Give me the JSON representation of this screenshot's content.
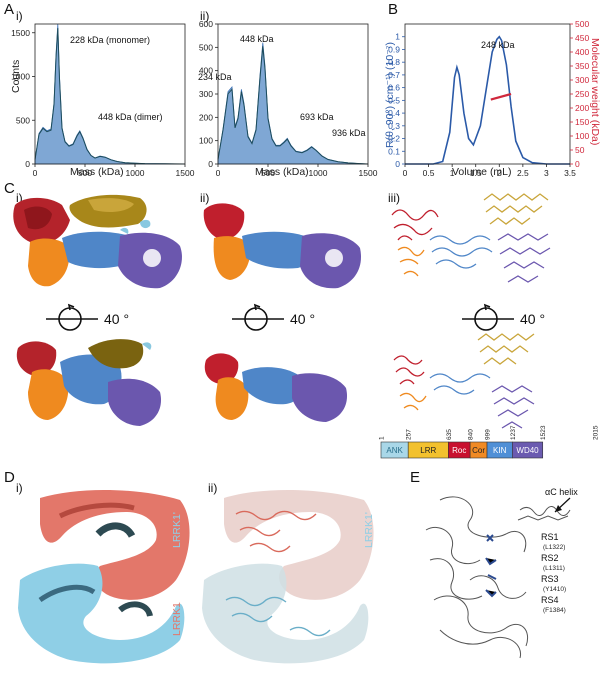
{
  "panels": {
    "A": "A",
    "B": "B",
    "C": "C",
    "D": "D",
    "E": "E",
    "sub_i": "i)",
    "sub_ii": "ii)",
    "sub_iii": "iii)"
  },
  "panelA": {
    "ylabel": "Counts",
    "xlabel": "Mass (kDa)",
    "i": {
      "ann1": "228 kDa (monomer)",
      "ann2": "448 kDa (dimer)"
    },
    "ii": {
      "ann1": "448 kDa",
      "ann2": "234 kDa",
      "ann3": "693 kDa",
      "ann4": "936 kDa"
    }
  },
  "panelB": {
    "xlabel": "Volume (mL)",
    "ylabel_left": "R(θ, 90°) (cm⁻¹) (10⁻⁷)",
    "ylabel_right": "Molecular weight (kDa)",
    "ann": "248 kDa"
  },
  "panelC": {
    "rotation_label": "40 °",
    "domains": [
      {
        "name": "ANK",
        "color": "#a9d7e8",
        "text_color": "#2a6f8a"
      },
      {
        "name": "LRR",
        "color": "#f2c12e",
        "text_color": "#222222"
      },
      {
        "name": "Roc",
        "color": "#c8102e",
        "text_color": "#ffffff"
      },
      {
        "name": "Cor",
        "color": "#f08a24",
        "text_color": "#222222"
      },
      {
        "name": "KIN",
        "color": "#4f8fd6",
        "text_color": "#ffffff"
      },
      {
        "name": "WD40",
        "color": "#6b5bb0",
        "text_color": "#ffffff"
      }
    ],
    "boundaries": [
      "1",
      "257",
      "635",
      "840",
      "999",
      "1237",
      "1523",
      "2015"
    ]
  },
  "panelD": {
    "label1": "LRRK1'",
    "label2": "LRRK1"
  },
  "panelE": {
    "helix": "αC helix",
    "rs": [
      {
        "name": "RS1",
        "res": "(L1322)"
      },
      {
        "name": "RS2",
        "res": "(L1311)"
      },
      {
        "name": "RS3",
        "res": "(Y1410)"
      },
      {
        "name": "RS4",
        "res": "(F1384)"
      }
    ]
  },
  "chart_data": [
    {
      "type": "area",
      "id": "A-i",
      "xlabel": "Mass (kDa)",
      "ylabel": "Counts",
      "xlim": [
        0,
        1500
      ],
      "ylim": [
        0,
        1600
      ],
      "xticks": [
        0,
        500,
        1000,
        1500
      ],
      "yticks": [
        0,
        500,
        1000,
        1500
      ],
      "x": [
        0,
        40,
        80,
        120,
        160,
        190,
        210,
        228,
        245,
        270,
        300,
        340,
        380,
        420,
        448,
        480,
        520,
        560,
        600,
        650,
        700,
        760,
        820,
        900,
        1000,
        1100,
        1200,
        1300,
        1400,
        1500
      ],
      "values": [
        50,
        350,
        420,
        380,
        400,
        700,
        1250,
        1600,
        1000,
        420,
        260,
        210,
        230,
        330,
        380,
        300,
        170,
        100,
        70,
        90,
        80,
        50,
        30,
        15,
        10,
        5,
        3,
        2,
        1,
        0
      ]
    },
    {
      "type": "area",
      "id": "A-ii",
      "xlabel": "Mass (kDa)",
      "ylabel": "",
      "xlim": [
        0,
        1500
      ],
      "ylim": [
        0,
        600
      ],
      "xticks": [
        0,
        500,
        1000,
        1500
      ],
      "yticks": [
        0,
        100,
        200,
        300,
        400,
        500,
        600
      ],
      "x": [
        0,
        50,
        100,
        140,
        170,
        200,
        234,
        260,
        300,
        340,
        380,
        420,
        448,
        470,
        500,
        540,
        580,
        620,
        660,
        693,
        730,
        780,
        840,
        890,
        936,
        980,
        1040,
        1100,
        1200,
        1300,
        1400,
        1500
      ],
      "values": [
        20,
        150,
        310,
        330,
        160,
        200,
        320,
        260,
        120,
        90,
        150,
        380,
        520,
        420,
        200,
        110,
        80,
        80,
        95,
        110,
        80,
        55,
        50,
        60,
        75,
        60,
        35,
        20,
        10,
        5,
        2,
        0
      ]
    },
    {
      "type": "line",
      "id": "B",
      "xlabel": "Volume (mL)",
      "ylabel": "R(θ, 90°) (cm⁻¹) (10⁻⁷)",
      "ylabel_right": "Molecular weight (kDa)",
      "xlim": [
        0,
        3.5
      ],
      "ylim": [
        0,
        1.1
      ],
      "ylim_right": [
        0,
        500
      ],
      "xticks": [
        0,
        0.5,
        1,
        1.5,
        2,
        2.5,
        3,
        3.5
      ],
      "yticks": [
        0,
        0.1,
        0.2,
        0.3,
        0.4,
        0.5,
        0.6,
        0.7,
        0.8,
        0.9,
        1
      ],
      "yticks_right": [
        0,
        50,
        100,
        150,
        200,
        250,
        300,
        350,
        400,
        450,
        500
      ],
      "x": [
        0,
        0.6,
        0.8,
        0.95,
        1.05,
        1.1,
        1.15,
        1.25,
        1.35,
        1.45,
        1.6,
        1.75,
        1.85,
        1.95,
        2.0,
        2.05,
        2.15,
        2.25,
        2.35,
        2.5,
        2.7,
        3.0,
        3.5
      ],
      "values": [
        0,
        0,
        0.02,
        0.25,
        0.68,
        0.76,
        0.7,
        0.4,
        0.2,
        0.15,
        0.3,
        0.65,
        0.88,
        0.98,
        1.0,
        0.97,
        0.78,
        0.45,
        0.18,
        0.05,
        0.01,
        0,
        0
      ],
      "mw_x": [
        1.82,
        2.25
      ],
      "mw_values": [
        230,
        250
      ]
    }
  ]
}
